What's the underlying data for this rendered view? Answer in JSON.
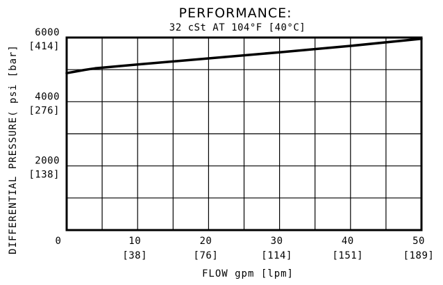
{
  "chart_data": {
    "type": "line",
    "title": "PERFORMANCE:",
    "subtitle": "32 cSt AT 104°F [40°C]",
    "xlabel": "FLOW gpm [lpm]",
    "ylabel": "DIFFERENTIAL PRESSURE( psi [bar]",
    "xlim": [
      0,
      50
    ],
    "ylim": [
      0,
      6000
    ],
    "grid": true,
    "x_ticks": [
      {
        "value": 0,
        "label": "0",
        "sub": ""
      },
      {
        "value": 10,
        "label": "10",
        "sub": "[38]"
      },
      {
        "value": 20,
        "label": "20",
        "sub": "[76]"
      },
      {
        "value": 30,
        "label": "30",
        "sub": "[114]"
      },
      {
        "value": 40,
        "label": "40",
        "sub": "[151]"
      },
      {
        "value": 50,
        "label": "50",
        "sub": "[189]"
      }
    ],
    "y_ticks": [
      {
        "value": 2000,
        "label": "2000",
        "sub": "[138]"
      },
      {
        "value": 4000,
        "label": "4000",
        "sub": "[276]"
      },
      {
        "value": 6000,
        "label": "6000",
        "sub": "[414]"
      }
    ],
    "series": [
      {
        "x": [
          0,
          1,
          2.5,
          4,
          10,
          20,
          30,
          40,
          50
        ],
        "y": [
          4890,
          4930,
          4990,
          5040,
          5160,
          5350,
          5540,
          5740,
          5960
        ]
      }
    ],
    "line_color": "#000000"
  }
}
